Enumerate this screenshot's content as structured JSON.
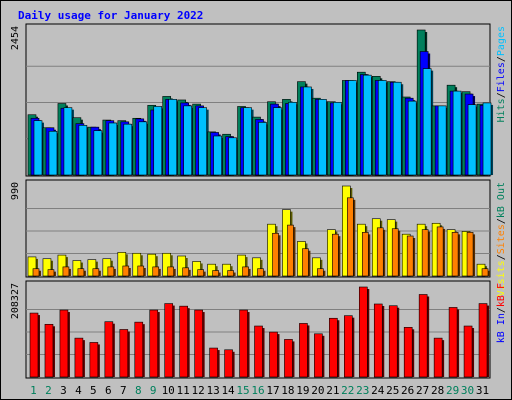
{
  "chart_data": {
    "type": "bar",
    "title": "Daily usage for January 2022",
    "x": [
      1,
      2,
      3,
      4,
      5,
      6,
      7,
      8,
      9,
      10,
      11,
      12,
      13,
      14,
      15,
      16,
      17,
      18,
      19,
      20,
      21,
      22,
      23,
      24,
      25,
      26,
      27,
      28,
      29,
      30,
      31
    ],
    "weekend_days": [
      1,
      2,
      8,
      9,
      15,
      16,
      22,
      23,
      29,
      30
    ],
    "colors": {
      "hits": "#00805c",
      "files": "#0000ff",
      "pages": "#00c0ff",
      "visits": "#ffff00",
      "sites": "#ff8000",
      "kb_in": "#ff0000",
      "kb_out": "#00805c",
      "weekday_label": "#000000",
      "weekend_label": "#00805c",
      "title": "#0000ff",
      "plot_bg": "#c0c0c0"
    },
    "panels": [
      {
        "ymax_label": "2454",
        "ymax": 2454,
        "legend": [
          {
            "text": "Hits",
            "color": "#00805c"
          },
          {
            "text": "/",
            "color": "#000000"
          },
          {
            "text": "Files",
            "color": "#0000ff"
          },
          {
            "text": "/",
            "color": "#000000"
          },
          {
            "text": "Pages",
            "color": "#00c0ff"
          }
        ],
        "series": [
          {
            "name": "Hits",
            "values": [
              1020,
              800,
              1210,
              970,
              810,
              930,
              920,
              960,
              1180,
              1330,
              1270,
              1200,
              730,
              690,
              1160,
              980,
              1240,
              1280,
              1580,
              1300,
              1240,
              1600,
              1740,
              1670,
              1580,
              1320,
              2454,
              1170,
              1520,
              1410,
              1200
            ]
          },
          {
            "name": "Files",
            "values": [
              960,
              800,
              1130,
              870,
              810,
              920,
              900,
              950,
              1100,
              1280,
              1220,
              1170,
              720,
              650,
              1140,
              940,
              1200,
              1210,
              1490,
              1280,
              1220,
              1600,
              1700,
              1600,
              1570,
              1300,
              2090,
              1170,
              1420,
              1370,
              1180
            ]
          },
          {
            "name": "Pages",
            "values": [
              920,
              740,
              1140,
              840,
              750,
              880,
              860,
              900,
              1160,
              1280,
              1170,
              1140,
              660,
              630,
              1140,
              890,
              1140,
              1230,
              1490,
              1280,
              1230,
              1600,
              1690,
              1600,
              1570,
              1250,
              1800,
              1170,
              1420,
              1190,
              1220
            ]
          }
        ]
      },
      {
        "ymax_label": "990",
        "ymax": 990,
        "legend": [
          {
            "text": "Visits",
            "color": "#ffff00"
          },
          {
            "text": "/",
            "color": "#000000"
          },
          {
            "text": "Sites",
            "color": "#ff8000"
          },
          {
            "text": "/",
            "color": "#000000"
          },
          {
            "text": "kB Out",
            "color": "#00805c"
          }
        ],
        "series": [
          {
            "name": "Visits",
            "values": [
              210,
              190,
              230,
              170,
              180,
              190,
              260,
              250,
              240,
              250,
              220,
              160,
              130,
              130,
              230,
              200,
              570,
              730,
              380,
              200,
              510,
              990,
              570,
              630,
              620,
              460,
              570,
              580,
              510,
              490,
              130
            ]
          },
          {
            "name": "Sites",
            "values": [
              80,
              70,
              100,
              80,
              80,
              100,
              110,
              110,
              100,
              100,
              90,
              70,
              60,
              60,
              100,
              80,
              470,
              560,
              300,
              80,
              460,
              860,
              480,
              530,
              520,
              440,
              510,
              540,
              480,
              480,
              80
            ]
          }
        ]
      },
      {
        "ymax_label": "208327",
        "ymax": 208327,
        "legend": [
          {
            "text": "kB In",
            "color": "#0000ff"
          },
          {
            "text": "/",
            "color": "#000000"
          },
          {
            "text": "kB F",
            "color": "#ff0000"
          }
        ],
        "series": [
          {
            "name": "kB F",
            "values": [
              148000,
              122000,
              155000,
              90000,
              80000,
              128000,
              110000,
              127000,
              155000,
              170000,
              164000,
              155000,
              67000,
              63000,
              155000,
              118000,
              104000,
              87000,
              124000,
              100000,
              136000,
              142000,
              208327,
              169000,
              165000,
              115000,
              191000,
              90000,
              161000,
              118000,
              170000
            ]
          }
        ]
      }
    ]
  }
}
